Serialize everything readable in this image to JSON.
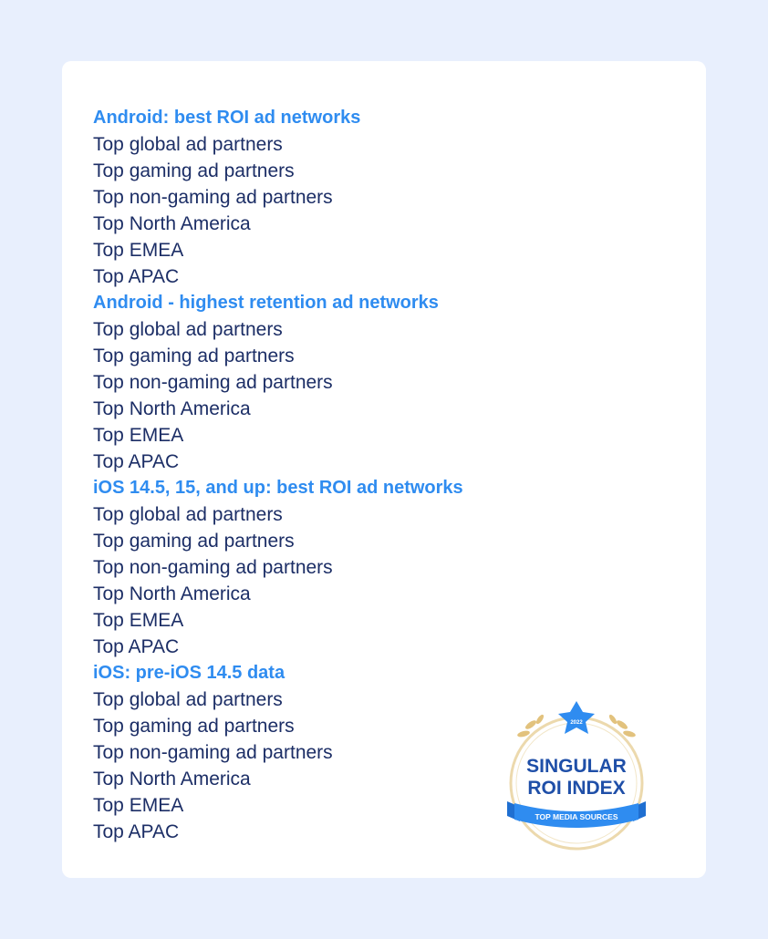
{
  "sections": [
    {
      "title": "Android: best ROI ad networks",
      "items": [
        "Top global ad partners",
        "Top gaming ad partners",
        "Top non-gaming ad partners",
        "Top North America",
        "Top EMEA",
        "Top APAC"
      ]
    },
    {
      "title": "Android - highest retention ad networks",
      "items": [
        "Top global ad partners",
        "Top gaming ad partners",
        "Top non-gaming ad partners",
        "Top North America",
        "Top EMEA",
        "Top APAC"
      ]
    },
    {
      "title": "iOS 14.5, 15, and up: best ROI ad networks",
      "items": [
        "Top global ad partners",
        "Top gaming ad partners",
        "Top non-gaming ad partners",
        "Top North America",
        "Top EMEA",
        "Top APAC"
      ]
    },
    {
      "title": "iOS: pre-iOS 14.5 data",
      "items": [
        "Top global ad partners",
        "Top gaming ad partners",
        "Top non-gaming ad partners",
        "Top North America",
        "Top EMEA",
        "Top APAC"
      ]
    }
  ],
  "badge": {
    "year": "2022",
    "line1": "SINGULAR",
    "line2": "ROI INDEX",
    "ribbon": "TOP MEDIA SOURCES"
  },
  "colors": {
    "background": "#e8effd",
    "heading": "#2f8cf0",
    "text": "#1c2e66",
    "badge_ring": "#e2c27d",
    "badge_text": "#1f4fa8",
    "ribbon": "#2f8cf0"
  }
}
